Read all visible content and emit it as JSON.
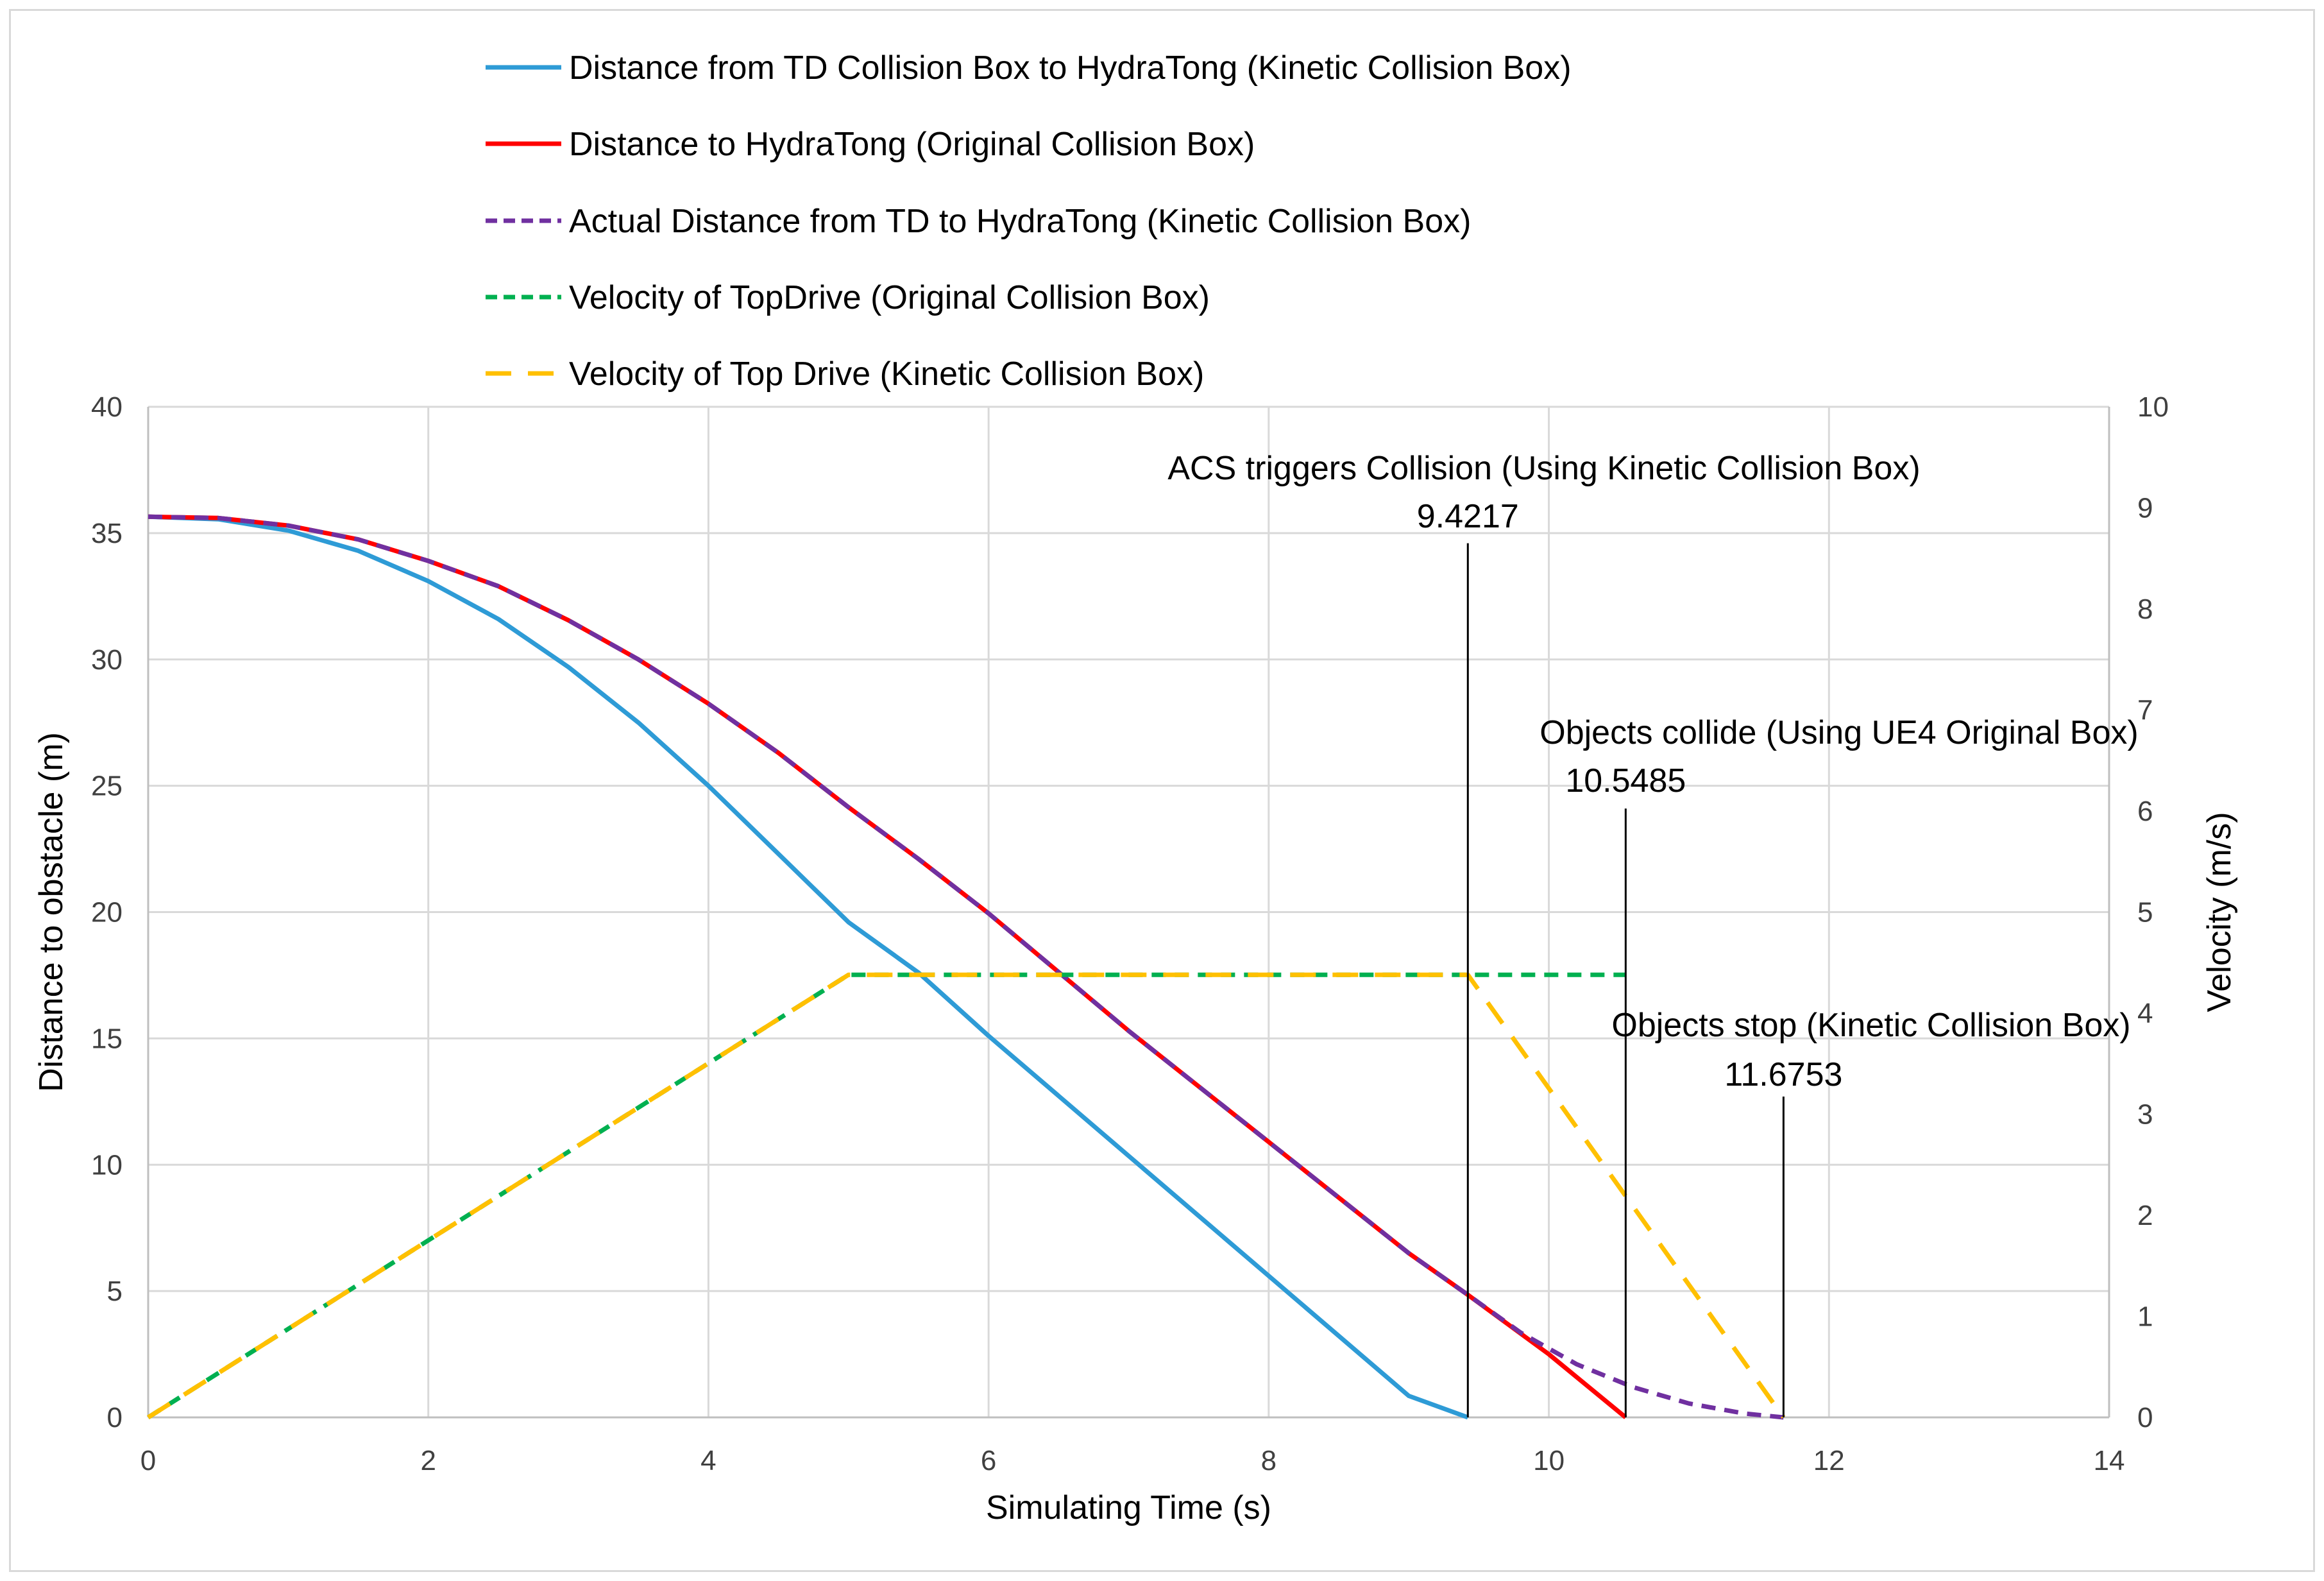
{
  "chart_data": {
    "type": "line",
    "xlabel": "Simulating Time (s)",
    "ylabel": "Distance to obstacle (m)",
    "y2label": "Velocity (m/s)",
    "xlim": [
      0,
      14
    ],
    "ylim": [
      0,
      40
    ],
    "y2lim": [
      0,
      10
    ],
    "x_ticks": [
      0,
      2,
      4,
      6,
      8,
      10,
      12,
      14
    ],
    "y_ticks": [
      0,
      5,
      10,
      15,
      20,
      25,
      30,
      35,
      40
    ],
    "y2_ticks": [
      0,
      1,
      2,
      3,
      4,
      5,
      6,
      7,
      8,
      9,
      10
    ],
    "grid": true,
    "legend_position": "top",
    "series": [
      {
        "name": "Distance from TD Collision Box to HydraTong (Kinetic Collision Box)",
        "axis": "left",
        "color": "#2e9bd6",
        "dash": "solid",
        "points": [
          [
            0,
            35.65
          ],
          [
            0.5,
            35.55
          ],
          [
            1,
            35.1
          ],
          [
            1.5,
            34.3
          ],
          [
            2,
            33.1
          ],
          [
            2.5,
            31.6
          ],
          [
            3,
            29.7
          ],
          [
            3.5,
            27.5
          ],
          [
            4,
            25.0
          ],
          [
            4.5,
            22.3
          ],
          [
            5,
            19.6
          ],
          [
            5.5,
            17.6
          ],
          [
            6,
            15.1
          ],
          [
            7,
            10.35
          ],
          [
            8,
            5.6
          ],
          [
            9,
            0.85
          ],
          [
            9.4217,
            0
          ]
        ]
      },
      {
        "name": "Distance to HydraTong (Original Collision Box)",
        "axis": "left",
        "color": "#ff0000",
        "dash": "solid",
        "points": [
          [
            0,
            35.65
          ],
          [
            0.5,
            35.6
          ],
          [
            1,
            35.3
          ],
          [
            1.5,
            34.75
          ],
          [
            2,
            33.9
          ],
          [
            2.5,
            32.9
          ],
          [
            3,
            31.55
          ],
          [
            3.5,
            30.0
          ],
          [
            4,
            28.25
          ],
          [
            4.5,
            26.3
          ],
          [
            5,
            24.15
          ],
          [
            5.5,
            22.1
          ],
          [
            6,
            19.95
          ],
          [
            7,
            15.3
          ],
          [
            8,
            10.9
          ],
          [
            9,
            6.5
          ],
          [
            9.4217,
            4.85
          ],
          [
            10,
            2.5
          ],
          [
            10.5485,
            0
          ]
        ]
      },
      {
        "name": "Actual Distance from TD to HydraTong (Kinetic Collision Box)",
        "axis": "left",
        "color": "#7030a0",
        "dash": "dash",
        "points": [
          [
            0,
            35.65
          ],
          [
            0.5,
            35.6
          ],
          [
            1,
            35.3
          ],
          [
            1.5,
            34.75
          ],
          [
            2,
            33.9
          ],
          [
            2.5,
            32.9
          ],
          [
            3,
            31.55
          ],
          [
            3.5,
            30.0
          ],
          [
            4,
            28.25
          ],
          [
            4.5,
            26.3
          ],
          [
            5,
            24.15
          ],
          [
            5.5,
            22.1
          ],
          [
            6,
            19.95
          ],
          [
            7,
            15.3
          ],
          [
            8,
            10.9
          ],
          [
            9,
            6.5
          ],
          [
            9.4217,
            4.85
          ],
          [
            9.8,
            3.35
          ],
          [
            10.2,
            2.1
          ],
          [
            10.6,
            1.2
          ],
          [
            11.0,
            0.55
          ],
          [
            11.4,
            0.15
          ],
          [
            11.6753,
            0
          ]
        ]
      },
      {
        "name": "Velocity of TopDrive (Original Collision Box)",
        "axis": "right",
        "color": "#00b050",
        "dash": "dash",
        "points": [
          [
            0,
            0
          ],
          [
            5,
            4.38
          ],
          [
            10.5485,
            4.38
          ]
        ]
      },
      {
        "name": "Velocity of Top Drive (Kinetic Collision Box)",
        "axis": "right",
        "color": "#ffc000",
        "dash": "longdash",
        "points": [
          [
            0,
            0
          ],
          [
            5,
            4.38
          ],
          [
            9.4217,
            4.38
          ],
          [
            11.6753,
            0
          ]
        ]
      }
    ],
    "annotations": [
      {
        "title": "ACS triggers Collision (Using Kinetic Collision Box)",
        "value": "9.4217",
        "x": 9.4217,
        "top_y": 34.6
      },
      {
        "title": "Objects collide (Using UE4 Original Box)",
        "value": "10.5485",
        "x": 10.5485,
        "top_y": 24.1
      },
      {
        "title": "Objects stop (Kinetic Collision Box)",
        "value": "11.6753",
        "x": 11.6753,
        "top_y": 12.7
      }
    ]
  }
}
